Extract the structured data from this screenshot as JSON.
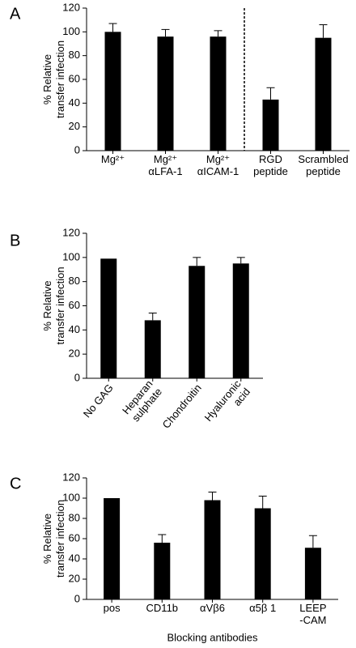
{
  "chart_data": [
    {
      "type": "bar",
      "panel_label": "A",
      "ylabel": [
        "% Relative",
        "transfer infection"
      ],
      "categories": [
        [
          "Mg²⁺"
        ],
        [
          "Mg²⁺",
          "αLFA-1"
        ],
        [
          "Mg²⁺",
          "αICAM-1"
        ],
        [
          "RGD",
          "peptide"
        ],
        [
          "Scrambled",
          "peptide"
        ]
      ],
      "values": [
        100,
        96,
        96,
        43,
        95
      ],
      "errors": [
        7,
        6,
        5,
        10,
        11
      ],
      "color": "#000000",
      "ylim": [
        0,
        120
      ],
      "yticks": [
        0,
        20,
        40,
        60,
        80,
        100,
        120
      ],
      "divider_after_index": 2,
      "label_rotation": 0
    },
    {
      "type": "bar",
      "panel_label": "B",
      "ylabel": [
        "% Relative",
        "transfer infection"
      ],
      "categories": [
        [
          "No GAG"
        ],
        [
          "Heparan",
          "sulphate"
        ],
        [
          "Chondroitin"
        ],
        [
          "Hyaluronic",
          "acid"
        ]
      ],
      "values": [
        99,
        48,
        93,
        95
      ],
      "errors": [
        0,
        6,
        7,
        5
      ],
      "color": "#000000",
      "ylim": [
        0,
        120
      ],
      "yticks": [
        0,
        20,
        40,
        60,
        80,
        100,
        120
      ],
      "label_rotation": -50
    },
    {
      "type": "bar",
      "panel_label": "C",
      "ylabel": [
        "% Relative",
        "transfer infection"
      ],
      "xlabel": "Blocking antibodies",
      "categories": [
        [
          "pos"
        ],
        [
          "CD11b"
        ],
        [
          "αVβ6"
        ],
        [
          "α5β 1"
        ],
        [
          "LEEP",
          "-CAM"
        ]
      ],
      "values": [
        100,
        56,
        98,
        90,
        51
      ],
      "errors": [
        0,
        8,
        8,
        12,
        12
      ],
      "color": "#000000",
      "ylim": [
        0,
        120
      ],
      "yticks": [
        0,
        20,
        40,
        60,
        80,
        100,
        120
      ],
      "label_rotation": 0
    }
  ]
}
